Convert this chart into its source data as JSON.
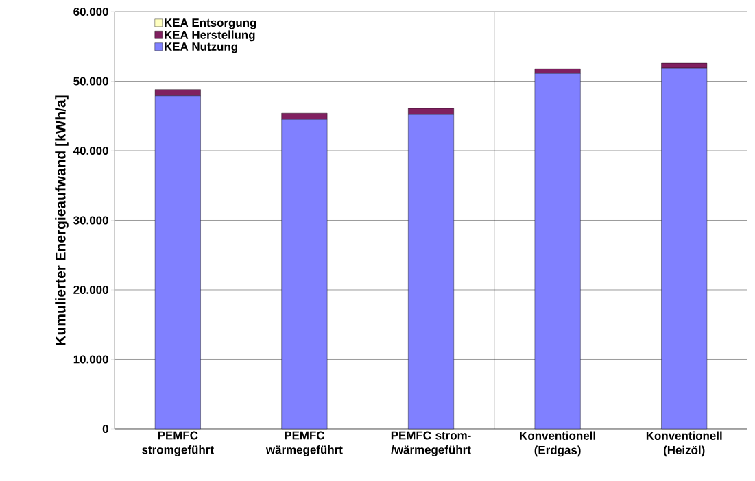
{
  "chart_data": {
    "type": "bar",
    "stacked": true,
    "ylabel": "Kumulierter Energieaufwand [kWh/a]",
    "categories": [
      "PEMFC stromgeführt",
      "PEMFC wärmegeführt",
      "PEMFC strom-/wärmegeführt",
      "Konventionell (Erdgas)",
      "Konventionell (Heizöl)"
    ],
    "series": [
      {
        "name": "KEA Nutzung",
        "color": "#8080ff",
        "values": [
          47900,
          44500,
          45200,
          51100,
          51900
        ]
      },
      {
        "name": "KEA Herstellung",
        "color": "#802060",
        "values": [
          900,
          900,
          900,
          700,
          700
        ]
      },
      {
        "name": "KEA Entsorgung",
        "color": "#ffffc0",
        "values": [
          0,
          0,
          0,
          0,
          0
        ]
      }
    ],
    "ylim": [
      0,
      60000
    ],
    "yticks": [
      {
        "value": 0,
        "label": "0"
      },
      {
        "value": 10000,
        "label": "10.000"
      },
      {
        "value": 20000,
        "label": "20.000"
      },
      {
        "value": 30000,
        "label": "30.000"
      },
      {
        "value": 40000,
        "label": "40.000"
      },
      {
        "value": 50000,
        "label": "50.000"
      },
      {
        "value": 60000,
        "label": "60.000"
      }
    ],
    "grid": "y",
    "legend": "top left"
  }
}
